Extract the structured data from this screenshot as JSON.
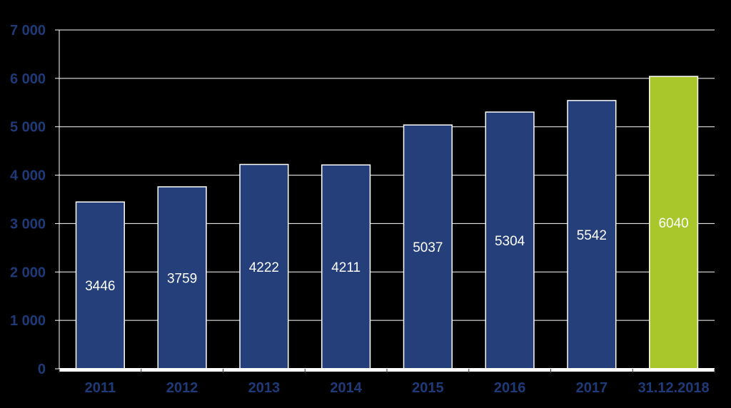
{
  "chart_data": {
    "type": "bar",
    "title": "",
    "xlabel": "",
    "ylabel": "",
    "categories": [
      "2011",
      "2012",
      "2013",
      "2014",
      "2015",
      "2016",
      "2017",
      "31.12.2018"
    ],
    "values": [
      3446,
      3759,
      4222,
      4211,
      5037,
      5304,
      5542,
      6040
    ],
    "data_labels": [
      "3446",
      "3759",
      "4222",
      "4211",
      "5037",
      "5304",
      "5542",
      "6040"
    ],
    "ylim": [
      0,
      7000
    ],
    "yticks": [
      0,
      1000,
      2000,
      3000,
      4000,
      5000,
      6000,
      7000
    ],
    "ytick_labels": [
      "0",
      "1 000",
      "2 000",
      "3 000",
      "4 000",
      "5 000",
      "6 000",
      "7 000"
    ],
    "grid": true,
    "legend": "none",
    "colors": {
      "background": "#000000",
      "bar": "#243f7a",
      "highlight_bar": "#a9c72b",
      "bar_outline": "#ffffff",
      "gridline": "#ffffff",
      "axis_text": "#1f3a78"
    },
    "highlight_index": 7
  }
}
